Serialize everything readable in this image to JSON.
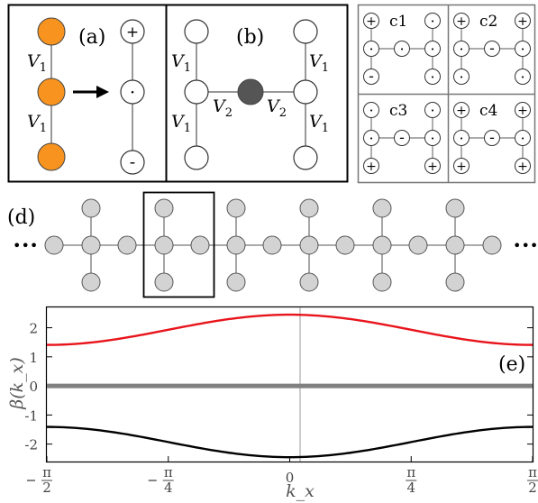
{
  "panels": {
    "a": "(a)",
    "b": "(b)",
    "d": "(d)",
    "e": "(e)"
  },
  "couplings": {
    "v1_base": "V",
    "v1_sub": "1",
    "v2_base": "V",
    "v2_sub": "2"
  },
  "signs": {
    "plus": "+",
    "minus": "-",
    "dot": "·"
  },
  "configs": [
    "c1",
    "c2",
    "c3",
    "c4"
  ],
  "ellipsis": "•••",
  "colors": {
    "orange": "#f7931e",
    "dark_site": "#555555",
    "lattice_site": "#d3d3d3",
    "upper_band": "#e8141b",
    "lower_band": "#000000",
    "flat_band": "#808080"
  },
  "chart_data": {
    "type": "line",
    "xlabel": "k_x",
    "ylabel": "β(k_x)",
    "xlim": [
      -1.5708,
      1.5708
    ],
    "ylim": [
      -2.6,
      2.7
    ],
    "x_ticks": [
      {
        "value": -1.5708,
        "num": "π",
        "den": "2",
        "neg": true
      },
      {
        "value": -0.7854,
        "num": "π",
        "den": "4",
        "neg": true
      },
      {
        "value": 0,
        "num": "0",
        "den": "",
        "neg": false
      },
      {
        "value": 0.7854,
        "num": "π",
        "den": "4",
        "neg": false
      },
      {
        "value": 1.5708,
        "num": "π",
        "den": "2",
        "neg": false
      }
    ],
    "y_ticks": [
      {
        "value": 2,
        "label": "2"
      },
      {
        "value": 1,
        "label": "1"
      },
      {
        "value": 0,
        "label": "0"
      },
      {
        "value": -1,
        "label": "-1"
      },
      {
        "value": -2,
        "label": "-2"
      }
    ],
    "series": [
      {
        "x": [
          -1.5708,
          -1.1781,
          -0.7854,
          -0.3927,
          0,
          0.3927,
          0.7854,
          1.1781,
          1.5708
        ],
        "y": [
          1.41,
          1.55,
          1.93,
          2.32,
          2.45,
          2.32,
          1.93,
          1.55,
          1.41
        ],
        "color": "#e8141b"
      },
      {
        "x": [
          -1.5708,
          1.5708
        ],
        "y": [
          0,
          0
        ],
        "color": "#808080"
      },
      {
        "x": [
          -1.5708,
          -1.1781,
          -0.7854,
          -0.3927,
          0,
          0.3927,
          0.7854,
          1.1781,
          1.5708
        ],
        "y": [
          -1.41,
          -1.55,
          -1.93,
          -2.32,
          -2.45,
          -2.32,
          -1.93,
          -1.55,
          -1.41
        ],
        "color": "#000000"
      }
    ],
    "grid": false,
    "legend": "none",
    "annotation": "(e)"
  }
}
